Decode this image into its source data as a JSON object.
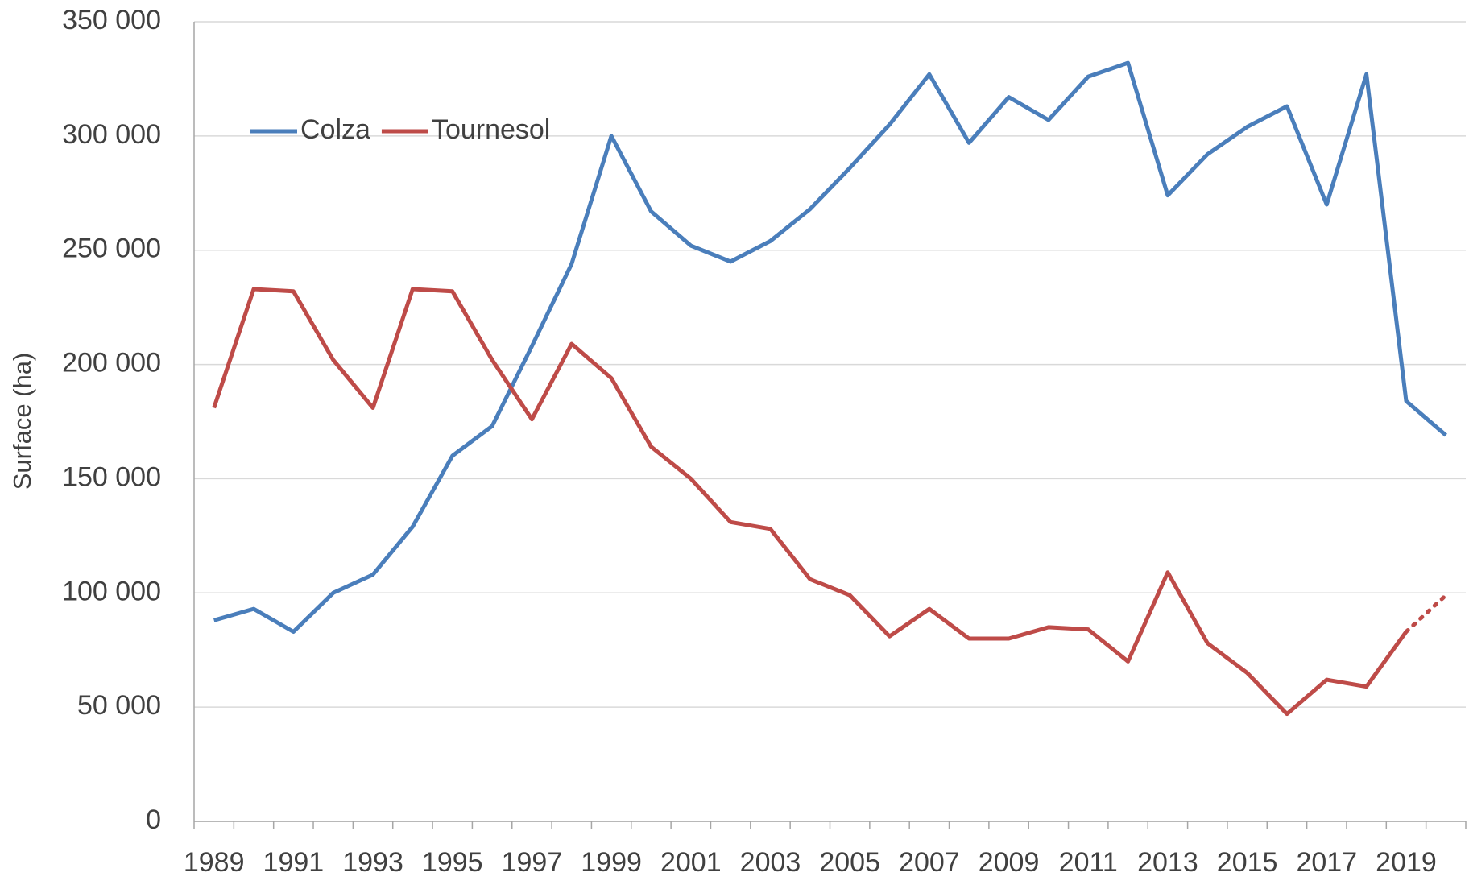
{
  "chart_data": {
    "type": "line",
    "y_label": "Surface (ha)",
    "categories": [
      "1989",
      null,
      "1991",
      null,
      "1993",
      null,
      "1995",
      null,
      "1997",
      null,
      "1999",
      null,
      "2001",
      null,
      "2003",
      null,
      "2005",
      null,
      "2007",
      null,
      "2009",
      null,
      "2011",
      null,
      "2013",
      null,
      "2015",
      null,
      "2017",
      null,
      "2019",
      null
    ],
    "series": [
      {
        "name": "Colza",
        "color": "#4a7ebb",
        "values": [
          88000,
          93000,
          83000,
          100000,
          108000,
          129000,
          160000,
          173000,
          208000,
          244000,
          300000,
          267000,
          252000,
          245000,
          254000,
          268000,
          286000,
          305000,
          327000,
          297000,
          317000,
          307000,
          326000,
          332000,
          274000,
          292000,
          304000,
          313000,
          270000,
          327000,
          184000,
          169000
        ]
      },
      {
        "name": "Tournesol",
        "color": "#be4b48",
        "dotted_last": true,
        "values": [
          181000,
          233000,
          232000,
          202000,
          181000,
          233000,
          232000,
          202000,
          176000,
          209000,
          194000,
          164000,
          150000,
          131000,
          128000,
          106000,
          99000,
          81000,
          93000,
          80000,
          80000,
          85000,
          84000,
          70000,
          109000,
          78000,
          65000,
          47000,
          62000,
          59000,
          83000,
          99000
        ]
      }
    ],
    "ylim": [
      0,
      350000
    ],
    "yticks": [
      0,
      {
        "value": 50000,
        "label": "50 000"
      },
      {
        "value": 100000,
        "label": "100 000"
      },
      {
        "value": 150000,
        "label": "150 000"
      },
      {
        "value": 200000,
        "label": "200 000"
      },
      {
        "value": 250000,
        "label": "250 000"
      },
      {
        "value": 300000,
        "label": "300 000"
      },
      {
        "value": 350000,
        "label": "350 000"
      }
    ],
    "grid": true,
    "legend": "upper left"
  }
}
